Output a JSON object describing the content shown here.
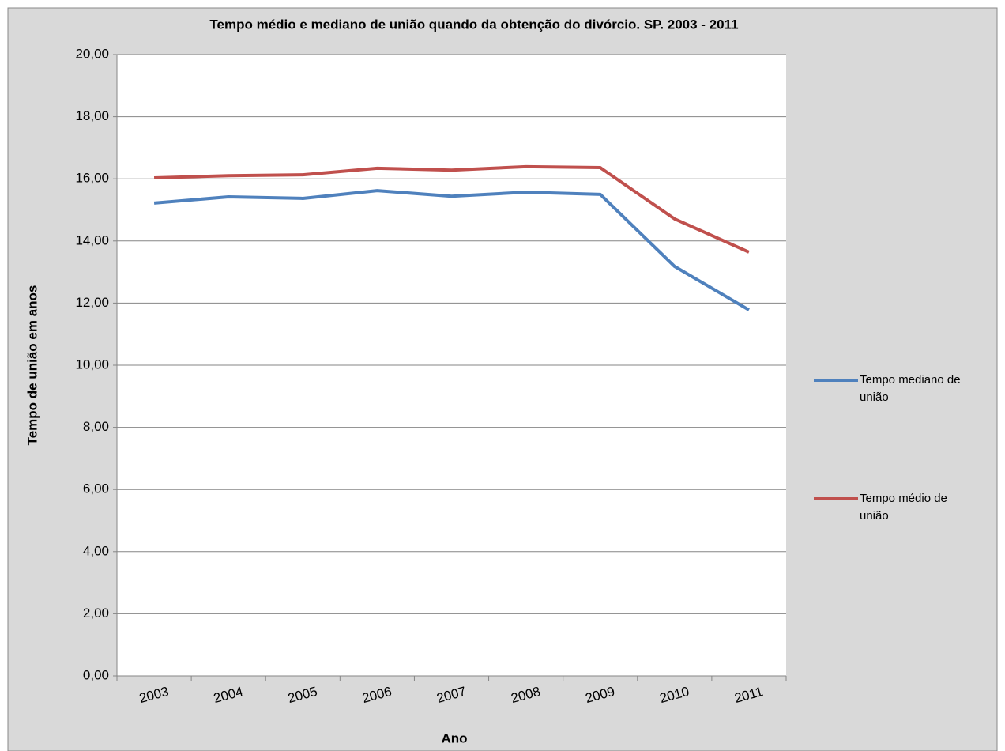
{
  "chart_data": {
    "type": "line",
    "title": "Tempo médio e mediano de união quando da obtenção do divórcio. SP. 2003 - 2011",
    "x_label": "Ano",
    "y_label": "Tempo de união em anos",
    "categories": [
      "2003",
      "2004",
      "2005",
      "2006",
      "2007",
      "2008",
      "2009",
      "2010",
      "2011"
    ],
    "series": [
      {
        "name": "Tempo mediano de união",
        "color": "#4f81bd",
        "values": [
          15.22,
          15.42,
          15.37,
          15.62,
          15.44,
          15.57,
          15.5,
          13.18,
          11.78
        ]
      },
      {
        "name": "Tempo médio de união",
        "color": "#c0504d",
        "values": [
          16.03,
          16.1,
          16.13,
          16.34,
          16.28,
          16.39,
          16.36,
          14.71,
          13.64
        ]
      }
    ],
    "ylim": [
      0,
      20
    ],
    "yticks": [
      {
        "value": 0,
        "label": "0,00"
      },
      {
        "value": 2,
        "label": "2,00"
      },
      {
        "value": 4,
        "label": "4,00"
      },
      {
        "value": 6,
        "label": "6,00"
      },
      {
        "value": 8,
        "label": "8,00"
      },
      {
        "value": 10,
        "label": "10,00"
      },
      {
        "value": 12,
        "label": "12,00"
      },
      {
        "value": 14,
        "label": "14,00"
      },
      {
        "value": 16,
        "label": "16,00"
      },
      {
        "value": 18,
        "label": "18,00"
      },
      {
        "value": 20,
        "label": "20,00"
      }
    ],
    "grid": true,
    "legend": "right"
  }
}
